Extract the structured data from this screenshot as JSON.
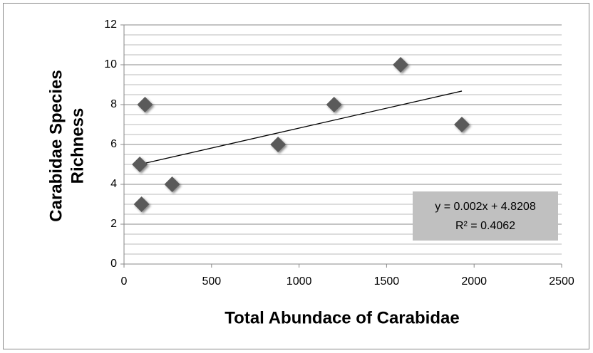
{
  "chart_data": {
    "type": "scatter",
    "xlabel": "Total Abundace of Carabidae",
    "ylabel": [
      "Carabidae Species",
      "Richness"
    ],
    "x": [
      90,
      100,
      120,
      275,
      880,
      1200,
      1580,
      1930
    ],
    "series": [
      {
        "color": "#5a5a5a",
        "values": [
          5,
          3,
          8,
          4,
          6,
          8,
          10,
          7
        ]
      }
    ],
    "xlim": [
      0,
      2500
    ],
    "xticks": [
      0,
      500,
      1000,
      1500,
      2000,
      2500
    ],
    "ylim": [
      0,
      12
    ],
    "yticks": [
      0,
      2,
      4,
      6,
      8,
      10,
      12
    ],
    "minor_yticks": [
      0.5,
      1,
      1.5,
      2.5,
      3,
      3.5,
      4.5,
      5,
      5.5,
      6.5,
      7,
      7.5,
      8.5,
      9,
      9.5,
      10.5,
      11,
      11.5
    ],
    "grid": true,
    "trendline": {
      "slope": 0.002,
      "intercept": 4.8208,
      "label": "y = 0.002x + 4.8208",
      "r2_label": "R² = 0.4062"
    }
  }
}
